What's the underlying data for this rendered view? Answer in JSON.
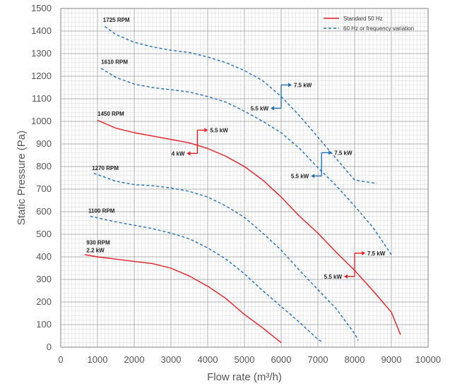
{
  "chart_data": {
    "type": "line",
    "xlabel": "Flow rate (m³/h)",
    "ylabel": "Static Pressure (Pa)",
    "xlim": [
      0,
      10000
    ],
    "ylim": [
      0,
      1500
    ],
    "x_ticks": [
      0,
      1000,
      2000,
      3000,
      4000,
      5000,
      6000,
      7000,
      8000,
      9000,
      10000
    ],
    "y_ticks": [
      0,
      100,
      200,
      300,
      400,
      500,
      600,
      700,
      800,
      900,
      1000,
      1100,
      1200,
      1300,
      1400,
      1500
    ],
    "grid": true,
    "legend_position": "top-right",
    "legend": [
      {
        "label": "Standard 50 Hz",
        "color": "#e31e24",
        "style": "solid"
      },
      {
        "label": "60 Hz or frequency variation",
        "color": "#1f6fb4",
        "style": "dashed"
      }
    ],
    "series": [
      {
        "name": "1725 RPM",
        "kind": "60 Hz or frequency variation",
        "x": [
          1200,
          1500,
          2000,
          2500,
          3000,
          3500,
          4000,
          4500,
          5000,
          5500,
          6000,
          6500,
          7000,
          7500,
          8000,
          8600
        ],
        "y": [
          1420,
          1385,
          1350,
          1330,
          1315,
          1305,
          1285,
          1260,
          1225,
          1180,
          1110,
          1025,
          930,
          835,
          740,
          725
        ]
      },
      {
        "name": "1610 RPM",
        "kind": "60 Hz or frequency variation",
        "x": [
          1100,
          1500,
          2000,
          2500,
          3000,
          3500,
          4000,
          4500,
          5000,
          5500,
          6000,
          6500,
          7000,
          7500,
          8000,
          8500,
          9000
        ],
        "y": [
          1235,
          1195,
          1165,
          1150,
          1140,
          1130,
          1110,
          1085,
          1045,
          1000,
          950,
          880,
          795,
          715,
          625,
          530,
          410
        ]
      },
      {
        "name": "1450 RPM",
        "kind": "Standard 50 Hz",
        "x": [
          1000,
          1500,
          2000,
          2500,
          3000,
          3500,
          4000,
          4500,
          5000,
          5500,
          6000,
          6500,
          7000,
          7500,
          8000,
          8500,
          9000,
          9250
        ],
        "y": [
          1005,
          970,
          950,
          935,
          920,
          905,
          880,
          845,
          800,
          740,
          665,
          580,
          505,
          420,
          340,
          250,
          155,
          55
        ]
      },
      {
        "name": "1270 RPM",
        "kind": "60 Hz or frequency variation",
        "x": [
          900,
          1500,
          2000,
          2500,
          3000,
          3500,
          4000,
          4500,
          5000,
          5500,
          6000,
          6500,
          7000,
          7500,
          8000,
          8100
        ],
        "y": [
          770,
          735,
          720,
          715,
          705,
          690,
          665,
          625,
          575,
          505,
          430,
          340,
          255,
          170,
          60,
          30
        ]
      },
      {
        "name": "1100 RPM",
        "kind": "60 Hz or frequency variation",
        "x": [
          800,
          1500,
          2000,
          2500,
          3000,
          3500,
          4000,
          4500,
          5000,
          5500,
          6000,
          6500,
          7000,
          7100
        ],
        "y": [
          580,
          555,
          540,
          525,
          505,
          480,
          440,
          390,
          325,
          250,
          180,
          110,
          35,
          25
        ]
      },
      {
        "name": "930 RPM",
        "kind": "Standard 50 Hz",
        "x": [
          650,
          1000,
          1500,
          2000,
          2500,
          3000,
          3500,
          4000,
          4500,
          5000,
          5500,
          6000
        ],
        "y": [
          410,
          400,
          390,
          380,
          370,
          350,
          315,
          270,
          215,
          145,
          85,
          20
        ]
      }
    ],
    "annotations": [
      {
        "text": "1725 RPM",
        "x": 1150,
        "y": 1440
      },
      {
        "text": "1610 RPM",
        "x": 1100,
        "y": 1255
      },
      {
        "text": "1450 RPM",
        "x": 1000,
        "y": 1025
      },
      {
        "text": "1270 RPM",
        "x": 850,
        "y": 785
      },
      {
        "text": "1100 RPM",
        "x": 750,
        "y": 595
      },
      {
        "text": "930 RPM",
        "x": 700,
        "y": 455
      },
      {
        "text": "2.2 kW",
        "x": 700,
        "y": 420
      }
    ],
    "power_markers": [
      {
        "kind": "Standard 50 Hz",
        "x": 3720,
        "y": 905,
        "up_label": "5.5 kW",
        "down_label": "4 kW"
      },
      {
        "kind": "60 Hz or frequency variation",
        "x": 6000,
        "y": 1105,
        "up_label": "7.5 kW",
        "down_label": "5.5 kW"
      },
      {
        "kind": "60 Hz or frequency variation",
        "x": 7100,
        "y": 805,
        "up_label": "7.5 kW",
        "down_label": "5.5 kW"
      },
      {
        "kind": "Standard 50 Hz",
        "x": 8000,
        "y": 360,
        "up_label": "7.5 kW",
        "down_label": "5.5 kW"
      }
    ]
  }
}
